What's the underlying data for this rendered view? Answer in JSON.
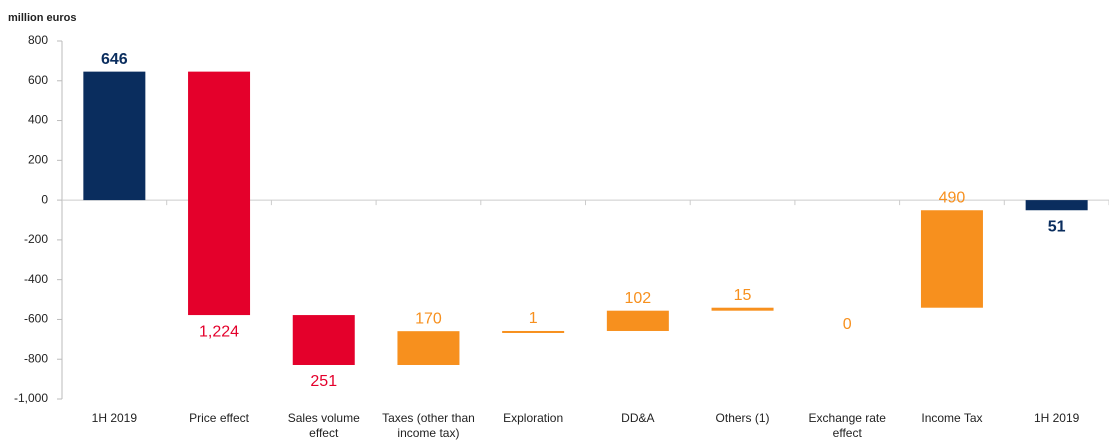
{
  "chart_data": {
    "type": "waterfall",
    "axis_title": "million euros",
    "categories": [
      "1H 2019",
      "Price effect",
      "Sales volume effect",
      "Taxes (other than income tax)",
      "Exploration",
      "DD&A",
      "Others (1)",
      "Exchange rate effect",
      "Income Tax",
      "1H 2019"
    ],
    "measure": [
      "absolute",
      "relative",
      "relative",
      "relative",
      "relative",
      "relative",
      "relative",
      "relative",
      "relative",
      "total"
    ],
    "values": [
      646,
      -1224,
      -251,
      170,
      1,
      102,
      15,
      0,
      490,
      -51
    ],
    "value_labels": [
      "646",
      "1,224",
      "251",
      "170",
      "1",
      "102",
      "15",
      "0",
      "490",
      "51"
    ],
    "colors": [
      "#0a2d5e",
      "#e4002b",
      "#e4002b",
      "#f7901e",
      "#f7901e",
      "#f7901e",
      "#f7901e",
      "#f7901e",
      "#f7901e",
      "#0a2d5e"
    ],
    "ylim": [
      -1000,
      800
    ],
    "yticks": [
      {
        "value": -1000,
        "label": "-1,000"
      },
      -800,
      -600,
      -400,
      -200,
      0,
      200,
      400,
      600,
      800
    ]
  }
}
